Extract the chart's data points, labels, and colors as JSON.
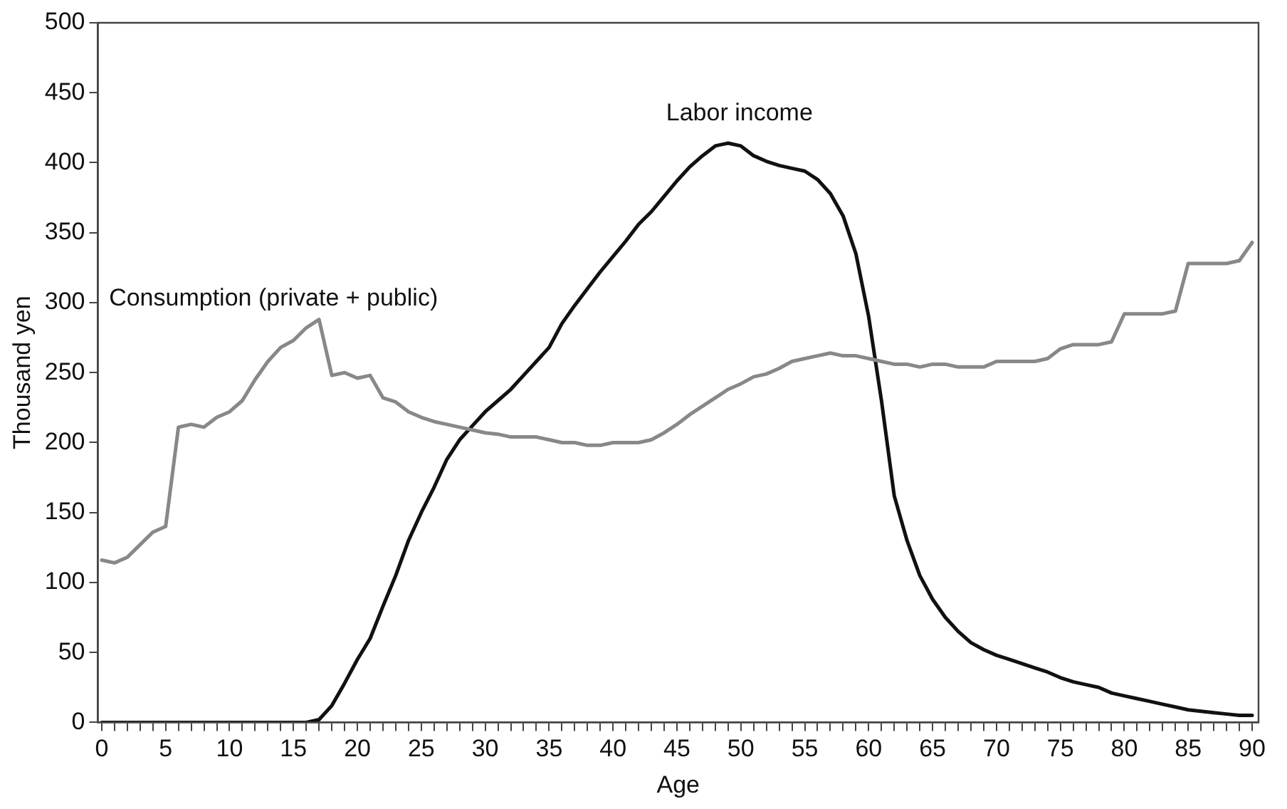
{
  "chart_data": {
    "type": "line",
    "xlabel": "Age",
    "ylabel": "Thousand yen",
    "x": [
      0,
      1,
      2,
      3,
      4,
      5,
      6,
      7,
      8,
      9,
      10,
      11,
      12,
      13,
      14,
      15,
      16,
      17,
      18,
      19,
      20,
      21,
      22,
      23,
      24,
      25,
      26,
      27,
      28,
      29,
      30,
      31,
      32,
      33,
      34,
      35,
      36,
      37,
      38,
      39,
      40,
      41,
      42,
      43,
      44,
      45,
      46,
      47,
      48,
      49,
      50,
      51,
      52,
      53,
      54,
      55,
      56,
      57,
      58,
      59,
      60,
      61,
      62,
      63,
      64,
      65,
      66,
      67,
      68,
      69,
      70,
      71,
      72,
      73,
      74,
      75,
      76,
      77,
      78,
      79,
      80,
      81,
      82,
      83,
      84,
      85,
      86,
      87,
      88,
      89,
      90
    ],
    "series": [
      {
        "name": "Consumption (private + public)",
        "color": "#888888",
        "values": [
          116,
          114,
          118,
          127,
          136,
          140,
          211,
          213,
          211,
          218,
          222,
          230,
          245,
          258,
          268,
          273,
          282,
          288,
          248,
          250,
          246,
          248,
          232,
          229,
          222,
          218,
          215,
          213,
          211,
          209,
          207,
          206,
          204,
          204,
          204,
          202,
          200,
          200,
          198,
          198,
          200,
          200,
          200,
          202,
          207,
          213,
          220,
          226,
          232,
          238,
          242,
          247,
          249,
          253,
          258,
          260,
          262,
          264,
          262,
          262,
          260,
          258,
          256,
          256,
          254,
          256,
          256,
          254,
          254,
          254,
          258,
          258,
          258,
          258,
          260,
          267,
          270,
          270,
          270,
          272,
          292,
          292,
          292,
          292,
          294,
          328,
          328,
          328,
          328,
          330,
          343
        ]
      },
      {
        "name": "Labor income",
        "color": "#111111",
        "values": [
          0,
          0,
          0,
          0,
          0,
          0,
          0,
          0,
          0,
          0,
          0,
          0,
          0,
          0,
          0,
          0,
          0,
          2,
          12,
          28,
          45,
          60,
          83,
          105,
          130,
          150,
          168,
          188,
          202,
          212,
          222,
          230,
          238,
          248,
          258,
          268,
          285,
          298,
          310,
          322,
          333,
          344,
          356,
          365,
          376,
          387,
          397,
          405,
          412,
          414,
          412,
          405,
          401,
          398,
          396,
          394,
          388,
          378,
          362,
          335,
          290,
          230,
          162,
          130,
          105,
          88,
          75,
          65,
          57,
          52,
          48,
          45,
          42,
          39,
          36,
          32,
          29,
          27,
          25,
          21,
          19,
          17,
          15,
          13,
          11,
          9,
          8,
          7,
          6,
          5,
          5
        ]
      }
    ],
    "xlim": [
      -0.3,
      90.5
    ],
    "xticks": [
      0,
      {
        "value": 1,
        "label": null
      },
      {
        "value": 2,
        "label": null
      },
      {
        "value": 3,
        "label": null
      },
      {
        "value": 4,
        "label": null
      },
      5,
      {
        "value": 6,
        "label": null
      },
      {
        "value": 7,
        "label": null
      },
      {
        "value": 8,
        "label": null
      },
      {
        "value": 9,
        "label": null
      },
      10,
      {
        "value": 11,
        "label": null
      },
      {
        "value": 12,
        "label": null
      },
      {
        "value": 13,
        "label": null
      },
      {
        "value": 14,
        "label": null
      },
      15,
      {
        "value": 16,
        "label": null
      },
      {
        "value": 17,
        "label": null
      },
      {
        "value": 18,
        "label": null
      },
      {
        "value": 19,
        "label": null
      },
      20,
      {
        "value": 21,
        "label": null
      },
      {
        "value": 22,
        "label": null
      },
      {
        "value": 23,
        "label": null
      },
      {
        "value": 24,
        "label": null
      },
      25,
      {
        "value": 26,
        "label": null
      },
      {
        "value": 27,
        "label": null
      },
      {
        "value": 28,
        "label": null
      },
      {
        "value": 29,
        "label": null
      },
      30,
      {
        "value": 31,
        "label": null
      },
      {
        "value": 32,
        "label": null
      },
      {
        "value": 33,
        "label": null
      },
      {
        "value": 34,
        "label": null
      },
      35,
      {
        "value": 36,
        "label": null
      },
      {
        "value": 37,
        "label": null
      },
      {
        "value": 38,
        "label": null
      },
      {
        "value": 39,
        "label": null
      },
      40,
      {
        "value": 41,
        "label": null
      },
      {
        "value": 42,
        "label": null
      },
      {
        "value": 43,
        "label": null
      },
      {
        "value": 44,
        "label": null
      },
      45,
      {
        "value": 46,
        "label": null
      },
      {
        "value": 47,
        "label": null
      },
      {
        "value": 48,
        "label": null
      },
      {
        "value": 49,
        "label": null
      },
      50,
      {
        "value": 51,
        "label": null
      },
      {
        "value": 52,
        "label": null
      },
      {
        "value": 53,
        "label": null
      },
      {
        "value": 54,
        "label": null
      },
      55,
      {
        "value": 56,
        "label": null
      },
      {
        "value": 57,
        "label": null
      },
      {
        "value": 58,
        "label": null
      },
      {
        "value": 59,
        "label": null
      },
      60,
      {
        "value": 61,
        "label": null
      },
      {
        "value": 62,
        "label": null
      },
      {
        "value": 63,
        "label": null
      },
      {
        "value": 64,
        "label": null
      },
      65,
      {
        "value": 66,
        "label": null
      },
      {
        "value": 67,
        "label": null
      },
      {
        "value": 68,
        "label": null
      },
      {
        "value": 69,
        "label": null
      },
      70,
      {
        "value": 71,
        "label": null
      },
      {
        "value": 72,
        "label": null
      },
      {
        "value": 73,
        "label": null
      },
      {
        "value": 74,
        "label": null
      },
      75,
      {
        "value": 76,
        "label": null
      },
      {
        "value": 77,
        "label": null
      },
      {
        "value": 78,
        "label": null
      },
      {
        "value": 79,
        "label": null
      },
      80,
      {
        "value": 81,
        "label": null
      },
      {
        "value": 82,
        "label": null
      },
      {
        "value": 83,
        "label": null
      },
      {
        "value": 84,
        "label": null
      },
      85,
      {
        "value": 86,
        "label": null
      },
      {
        "value": 87,
        "label": null
      },
      {
        "value": 88,
        "label": null
      },
      {
        "value": 89,
        "label": null
      },
      90
    ],
    "ylim": [
      0,
      500
    ],
    "yticks": [
      0,
      50,
      100,
      150,
      200,
      250,
      300,
      350,
      400,
      450,
      500
    ],
    "grid": false,
    "legend": false,
    "marker": "none",
    "line_style": "solid"
  }
}
